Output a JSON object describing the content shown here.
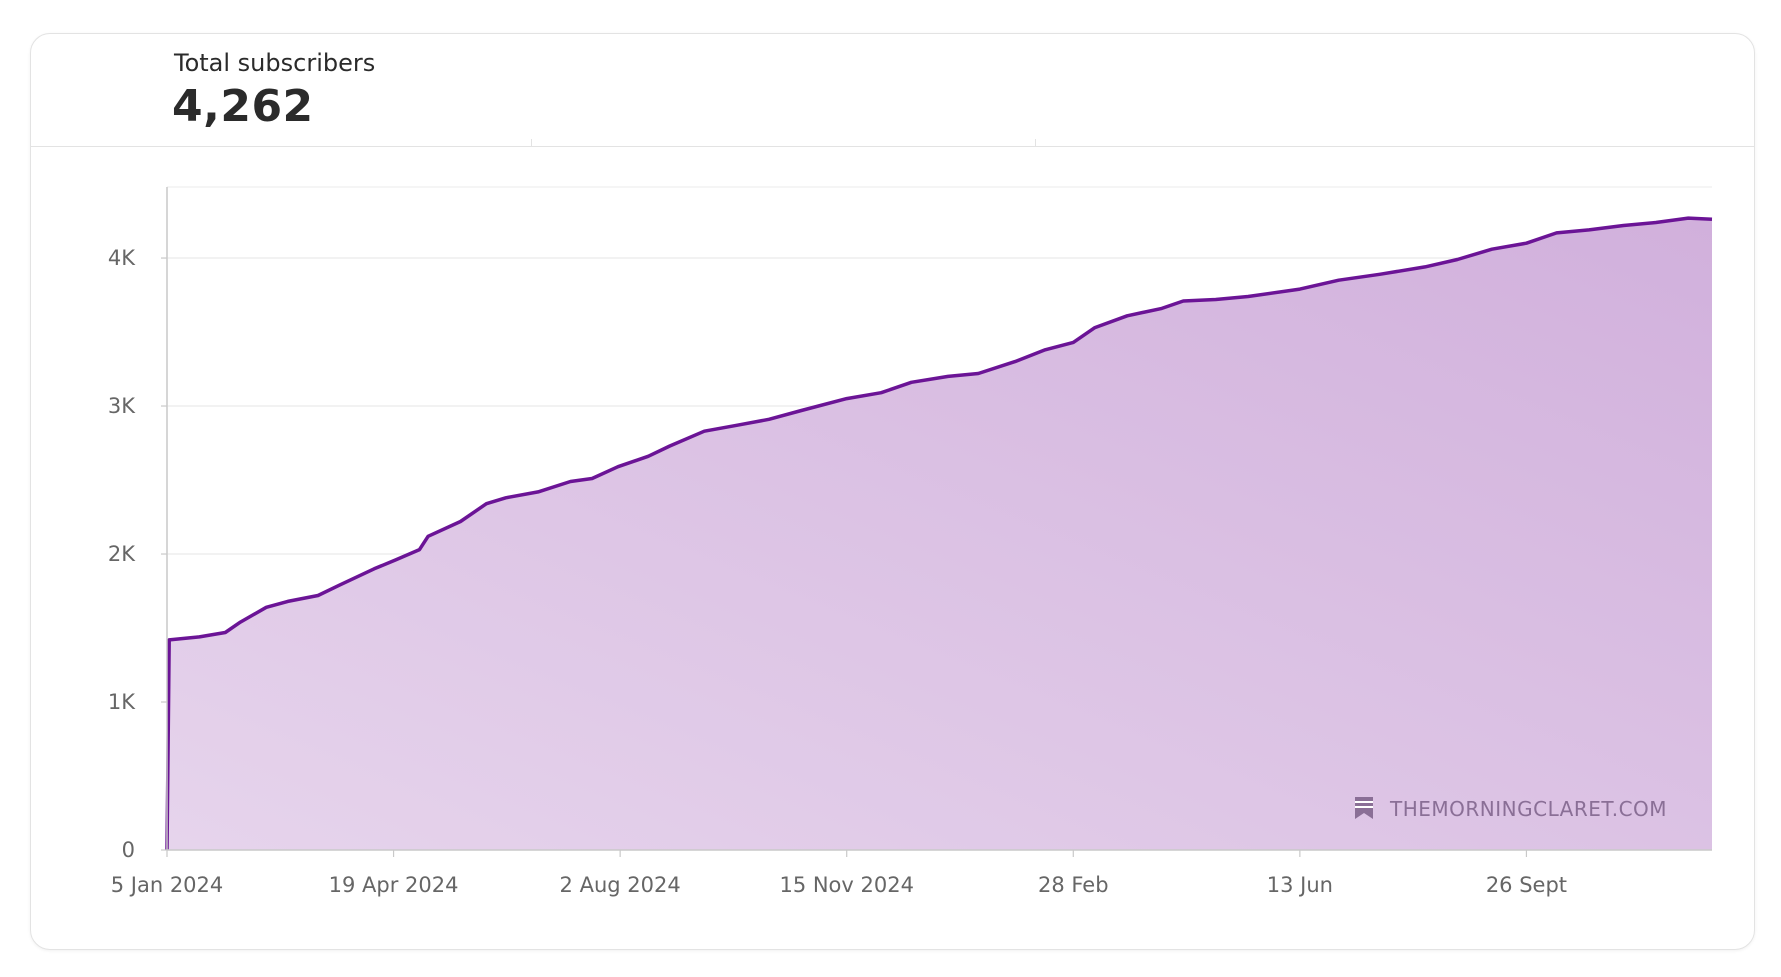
{
  "metric": {
    "label": "Total subscribers",
    "value": "4,262"
  },
  "watermark": "THEMORNINGCLARET.COM",
  "colors": {
    "line": "#6b1496",
    "fill_light": "#e6d4ec",
    "fill_dark": "#d1b0dc",
    "grid": "#ebebeb",
    "axis": "#c9c9c9"
  },
  "chart_data": {
    "type": "area",
    "title": "",
    "xlabel": "",
    "ylabel": "",
    "ylim": [
      0,
      4480
    ],
    "y_ticks": [
      0,
      1000,
      2000,
      3000,
      4000
    ],
    "y_tick_labels": [
      "0",
      "1K",
      "2K",
      "3K",
      "4K"
    ],
    "x_range": [
      "2024-01-05",
      "2025-12-21"
    ],
    "x_ticks": [
      "2024-01-05",
      "2024-04-19",
      "2024-08-02",
      "2024-11-15",
      "2025-02-28",
      "2025-06-13",
      "2025-09-26"
    ],
    "x_tick_labels": [
      "5 Jan 2024",
      "19 Apr 2024",
      "2 Aug 2024",
      "15 Nov 2024",
      "28 Feb",
      "13 Jun",
      "26 Sept"
    ],
    "grid": true,
    "legend": "none",
    "series": [
      {
        "x": [
          "2024-01-05",
          "2024-01-06",
          "2024-01-20",
          "2024-02-01",
          "2024-02-08",
          "2024-02-20",
          "2024-03-01",
          "2024-03-15",
          "2024-03-25",
          "2024-04-10",
          "2024-04-20",
          "2024-05-01",
          "2024-05-05",
          "2024-05-20",
          "2024-06-01",
          "2024-06-10",
          "2024-06-25",
          "2024-07-10",
          "2024-07-20",
          "2024-08-01",
          "2024-08-15",
          "2024-08-25",
          "2024-09-10",
          "2024-09-25",
          "2024-10-10",
          "2024-10-25",
          "2024-11-15",
          "2024-12-01",
          "2024-12-15",
          "2025-01-01",
          "2025-01-15",
          "2025-02-01",
          "2025-02-15",
          "2025-02-28",
          "2025-03-10",
          "2025-03-25",
          "2025-04-10",
          "2025-04-20",
          "2025-05-05",
          "2025-05-20",
          "2025-06-13",
          "2025-07-01",
          "2025-07-20",
          "2025-08-10",
          "2025-08-25",
          "2025-09-10",
          "2025-09-26",
          "2025-10-10",
          "2025-10-25",
          "2025-11-10",
          "2025-11-25",
          "2025-12-10",
          "2025-12-21"
        ],
        "y": [
          0,
          1420,
          1440,
          1470,
          1540,
          1640,
          1680,
          1720,
          1790,
          1900,
          1960,
          2030,
          2120,
          2220,
          2340,
          2380,
          2420,
          2490,
          2510,
          2590,
          2660,
          2730,
          2830,
          2870,
          2910,
          2970,
          3050,
          3090,
          3160,
          3200,
          3220,
          3300,
          3380,
          3430,
          3530,
          3610,
          3660,
          3710,
          3720,
          3740,
          3790,
          3850,
          3890,
          3940,
          3990,
          4060,
          4100,
          4170,
          4190,
          4220,
          4240,
          4270,
          4262
        ]
      }
    ]
  }
}
